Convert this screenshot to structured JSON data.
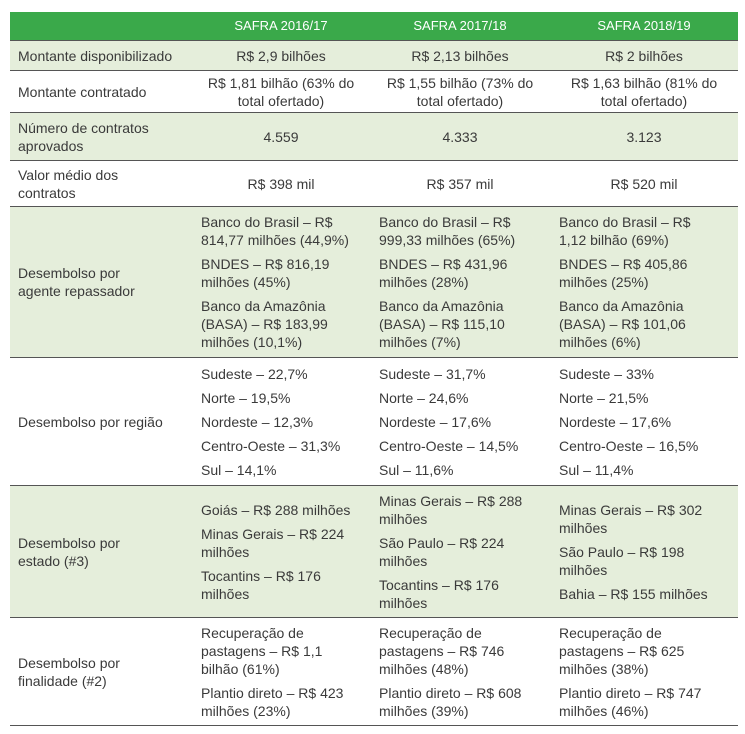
{
  "headers": [
    "",
    "SAFRA 2016/17",
    "SAFRA 2017/18",
    "SAFRA 2018/19"
  ],
  "rows": [
    {
      "label": "Montante disponibilizado",
      "values": [
        "R$ 2,9 bilhões",
        "R$ 2,13 bilhões",
        "R$ 2 bilhões"
      ]
    },
    {
      "label": "Montante contratado",
      "values": [
        "R$ 1,81 bilhão (63% do total ofertado)",
        "R$ 1,55 bilhão (73% do total ofertado)",
        "R$ 1,63 bilhão (81% do total ofertado)"
      ]
    },
    {
      "label": "Número de contratos aprovados",
      "values": [
        "4.559",
        "4.333",
        "3.123"
      ]
    },
    {
      "label": "Valor médio dos contratos",
      "values": [
        "R$ 398 mil",
        "R$ 357 mil",
        "R$ 520 mil"
      ]
    },
    {
      "label": "Desembolso por agente repassador",
      "lists": [
        [
          "Banco do Brasil – R$ 814,77 milhões (44,9%)",
          "BNDES – R$ 816,19 milhões (45%)",
          "Banco da Amazônia (BASA) – R$ 183,99 milhões (10,1%)"
        ],
        [
          "Banco do Brasil – R$ 999,33 milhões (65%)",
          "BNDES – R$ 431,96 milhões (28%)",
          "Banco da Amazônia (BASA) – R$ 115,10 milhões (7%)"
        ],
        [
          "Banco do Brasil – R$ 1,12 bilhão (69%)",
          "BNDES – R$ 405,86 milhões (25%)",
          "Banco da Amazônia (BASA) – R$ 101,06 milhões (6%)"
        ]
      ]
    },
    {
      "label": "Desembolso por região",
      "lists": [
        [
          "Sudeste – 22,7%",
          "Norte – 19,5%",
          "Nordeste – 12,3%",
          "Centro-Oeste – 31,3%",
          "Sul – 14,1%"
        ],
        [
          "Sudeste – 31,7%",
          "Norte – 24,6%",
          "Nordeste – 17,6%",
          "Centro-Oeste – 14,5%",
          "Sul – 11,6%"
        ],
        [
          "Sudeste – 33%",
          "Norte – 21,5%",
          "Nordeste – 17,6%",
          "Centro-Oeste – 16,5%",
          "Sul – 11,4%"
        ]
      ]
    },
    {
      "label": "Desembolso por estado (#3)",
      "lists": [
        [
          "Goiás – R$ 288 milhões",
          "Minas Gerais – R$ 224 milhões",
          "Tocantins – R$ 176 milhões"
        ],
        [
          "Minas Gerais – R$ 288 milhões",
          "São Paulo – R$ 224 milhões",
          "Tocantins – R$ 176 milhões"
        ],
        [
          "Minas Gerais – R$ 302 milhões",
          "São Paulo – R$ 198 milhões",
          "Bahia – R$ 155 milhões"
        ]
      ]
    },
    {
      "label": "Desembolso por finalidade (#2)",
      "lists": [
        [
          "Recuperação de pastagens – R$ 1,1 bilhão (61%)",
          "Plantio direto – R$ 423 milhões (23%)"
        ],
        [
          "Recuperação de pastagens – R$ 746 milhões (48%)",
          "Plantio direto – R$ 608 milhões (39%)"
        ],
        [
          "Recuperação de pastagens – R$ 625 milhões (38%)",
          "Plantio direto – R$ 747 milhões (46%)"
        ]
      ]
    }
  ]
}
